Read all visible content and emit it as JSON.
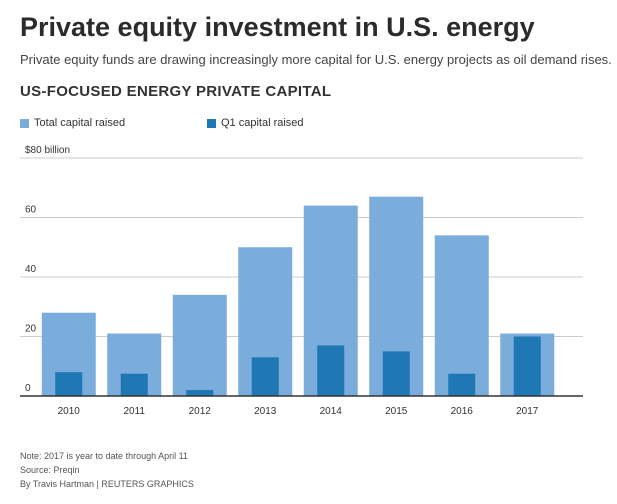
{
  "header": {
    "title": "Private equity investment in U.S. energy",
    "subtitle": "Private equity funds are drawing increasingly more capital for U.S. energy projects as oil demand rises.",
    "chart_title": "US-FOCUSED ENERGY PRIVATE CAPITAL"
  },
  "footer": {
    "note": "Note: 2017 is year to date through April 11",
    "source": "Source: Preqin",
    "credit": "By Travis Hartman | REUTERS GRAPHICS"
  },
  "colors": {
    "total": "#7aacdc",
    "q1": "#1f77b4",
    "grid": "#cccccc",
    "axis": "#333333"
  },
  "chart_data": {
    "type": "bar",
    "categories": [
      "2010",
      "2011",
      "2012",
      "2013",
      "2014",
      "2015",
      "2016",
      "2017"
    ],
    "series": [
      {
        "name": "Total capital raised",
        "values": [
          28,
          21,
          34,
          50,
          64,
          67,
          54,
          21
        ]
      },
      {
        "name": "Q1 capital raised",
        "values": [
          8,
          7.5,
          2,
          13,
          17,
          15,
          7.5,
          20
        ]
      }
    ],
    "y_ticks": [
      "0",
      "20",
      "40",
      "60",
      "$80 billion"
    ],
    "y_tick_values": [
      0,
      20,
      40,
      60,
      80
    ],
    "ylim": [
      0,
      80
    ],
    "grid": true,
    "legend": "top-left"
  }
}
